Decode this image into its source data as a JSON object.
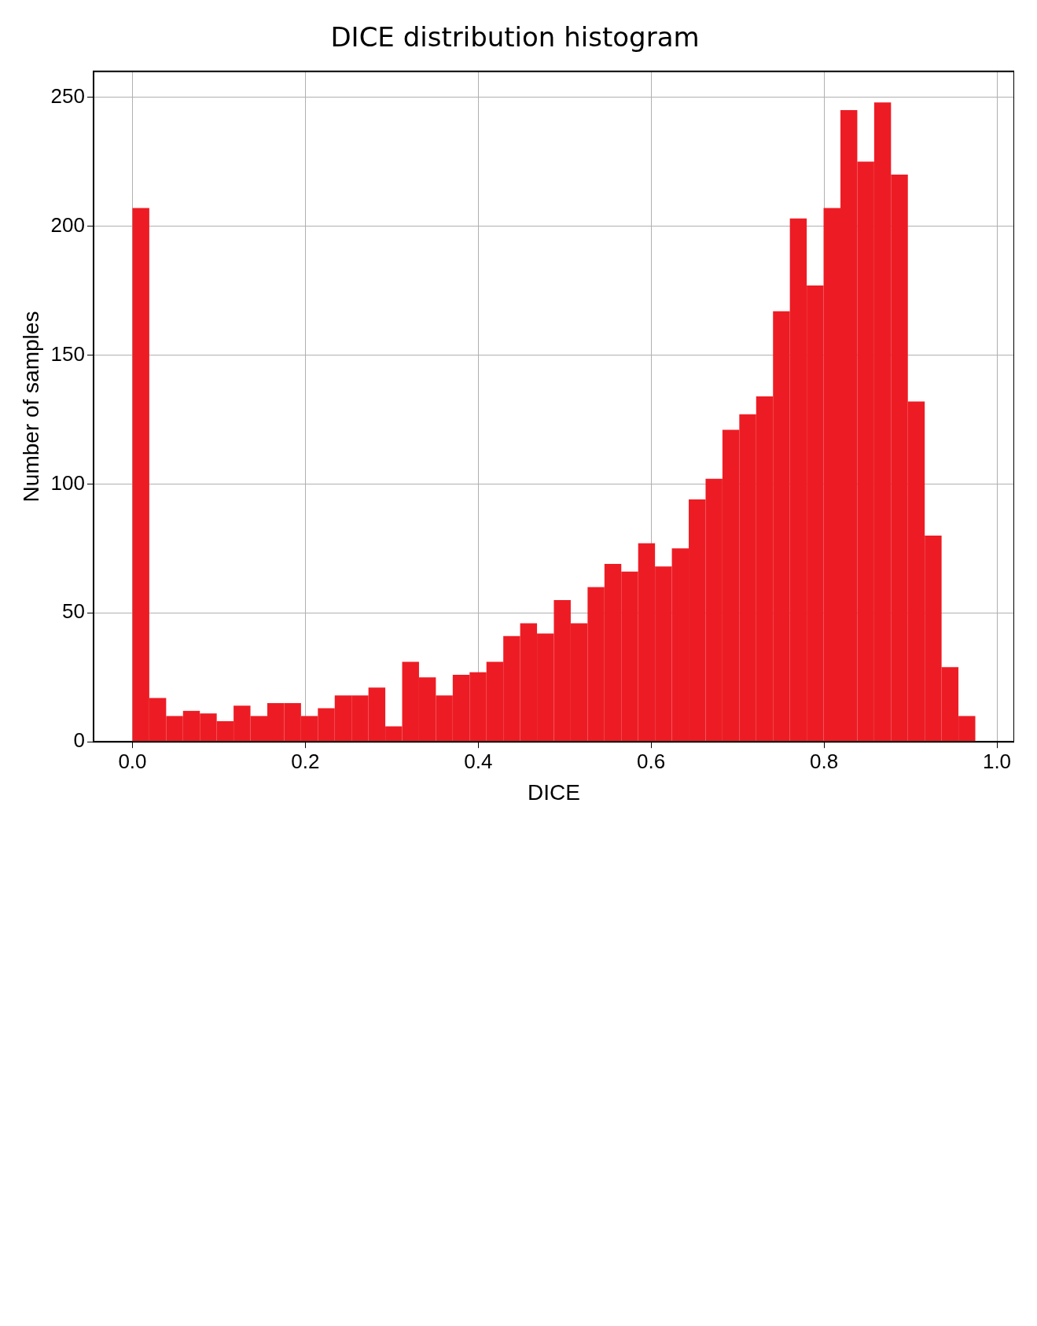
{
  "chart_data": {
    "type": "histogram",
    "title": "DICE distribution histogram",
    "xlabel": "DICE",
    "ylabel": "Number of samples",
    "bins": [
      0,
      0.0195,
      0.039,
      0.0585,
      0.078,
      0.0975,
      0.117,
      0.1365,
      0.156,
      0.1755,
      0.195,
      0.2145,
      0.234,
      0.2535,
      0.273,
      0.2925,
      0.312,
      0.3315,
      0.351,
      0.3705,
      0.39,
      0.4095,
      0.429,
      0.4485,
      0.468,
      0.4875,
      0.507,
      0.5265,
      0.546,
      0.5655,
      0.585,
      0.6045,
      0.624,
      0.6435,
      0.663,
      0.6825,
      0.702,
      0.7215,
      0.741,
      0.7605,
      0.78,
      0.7995,
      0.819,
      0.8385,
      0.858,
      0.8775,
      0.897,
      0.9165,
      0.936,
      0.9555,
      0.975
    ],
    "values": [
      207,
      17,
      10,
      12,
      11,
      8,
      14,
      10,
      15,
      15,
      10,
      13,
      18,
      18,
      21,
      6,
      31,
      25,
      18,
      26,
      27,
      31,
      41,
      46,
      42,
      55,
      46,
      60,
      69,
      66,
      77,
      68,
      75,
      94,
      102,
      121,
      127,
      134,
      167,
      203,
      177,
      207,
      245,
      225,
      248,
      220,
      132,
      80,
      29,
      10
    ],
    "color": "#ed1c24",
    "xlim": [
      -0.045,
      1.02
    ],
    "xticks": [
      {
        "value": 0,
        "label": "0.0"
      },
      {
        "value": 0.2,
        "label": "0.2"
      },
      {
        "value": 0.4,
        "label": "0.4"
      },
      {
        "value": 0.6,
        "label": "0.6"
      },
      {
        "value": 0.8,
        "label": "0.8"
      },
      {
        "value": 1,
        "label": "1.0"
      }
    ],
    "ylim": [
      0,
      260
    ],
    "yticks": [
      0,
      50,
      100,
      150,
      200,
      250
    ],
    "grid": true
  }
}
